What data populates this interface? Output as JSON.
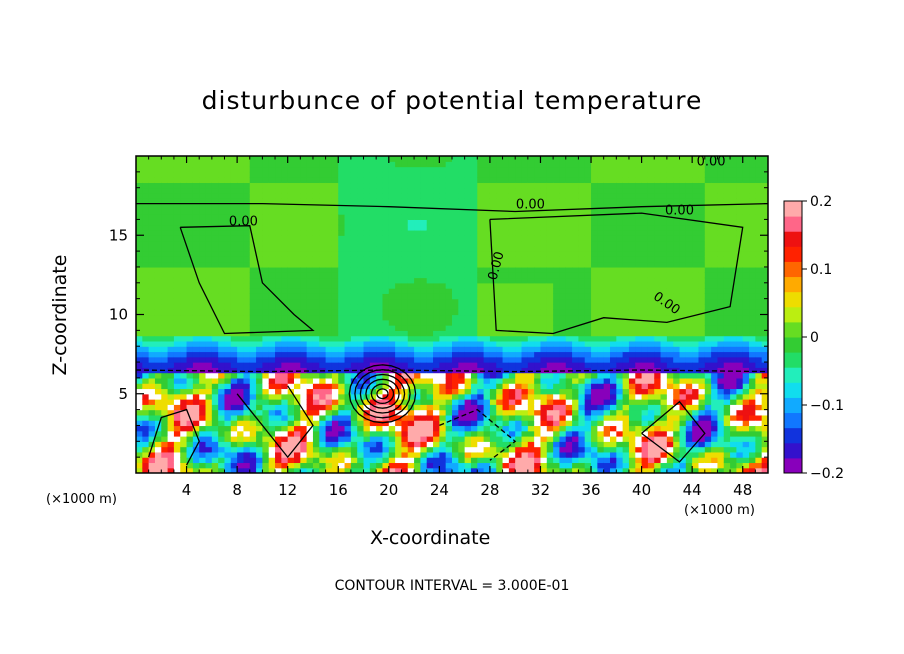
{
  "chart_data": {
    "type": "heatmap",
    "title": "disturbunce of potential temperature",
    "xlabel": "X-coordinate",
    "ylabel": "Z-coordinate",
    "x_unit_label": "(×1000 m)",
    "x_ticks": [
      4,
      8,
      12,
      16,
      20,
      24,
      28,
      32,
      36,
      40,
      44,
      48
    ],
    "y_ticks": [
      5,
      10,
      15
    ],
    "xlim": [
      0,
      50
    ],
    "ylim": [
      0,
      20
    ],
    "colorbar": {
      "ticks": [
        "0.2",
        "0.1",
        "0",
        "−0.1",
        "−0.2"
      ],
      "range": [
        -0.2,
        0.2
      ],
      "colors": [
        "#8800bb",
        "#3311cc",
        "#1133dd",
        "#1177ff",
        "#11aaff",
        "#11ddee",
        "#22eebb",
        "#22dd66",
        "#33cc33",
        "#66dd22",
        "#bbee11",
        "#eedd00",
        "#ffaa00",
        "#ff6600",
        "#ff2200",
        "#ee1111",
        "#ff6688",
        "#ffaaaa"
      ]
    },
    "contour_labels": [
      "0.00",
      "0.00",
      "0.00",
      "0.00",
      "0.00",
      "0.00"
    ],
    "contour_interval_text": "CONTOUR INTERVAL = 3.000E-01",
    "regions": {
      "upper_layer": {
        "z_range": [
          8.5,
          20
        ],
        "value": 0.0,
        "note": "near-zero, green"
      },
      "transition_layer": {
        "z_range": [
          6.5,
          8.5
        ],
        "value": -0.15,
        "note": "negative band, blue/cyan"
      },
      "lower_layer": {
        "z_range": [
          0,
          6.5
        ],
        "value_range": [
          -0.2,
          0.2
        ],
        "note": "turbulent eddies"
      }
    }
  }
}
